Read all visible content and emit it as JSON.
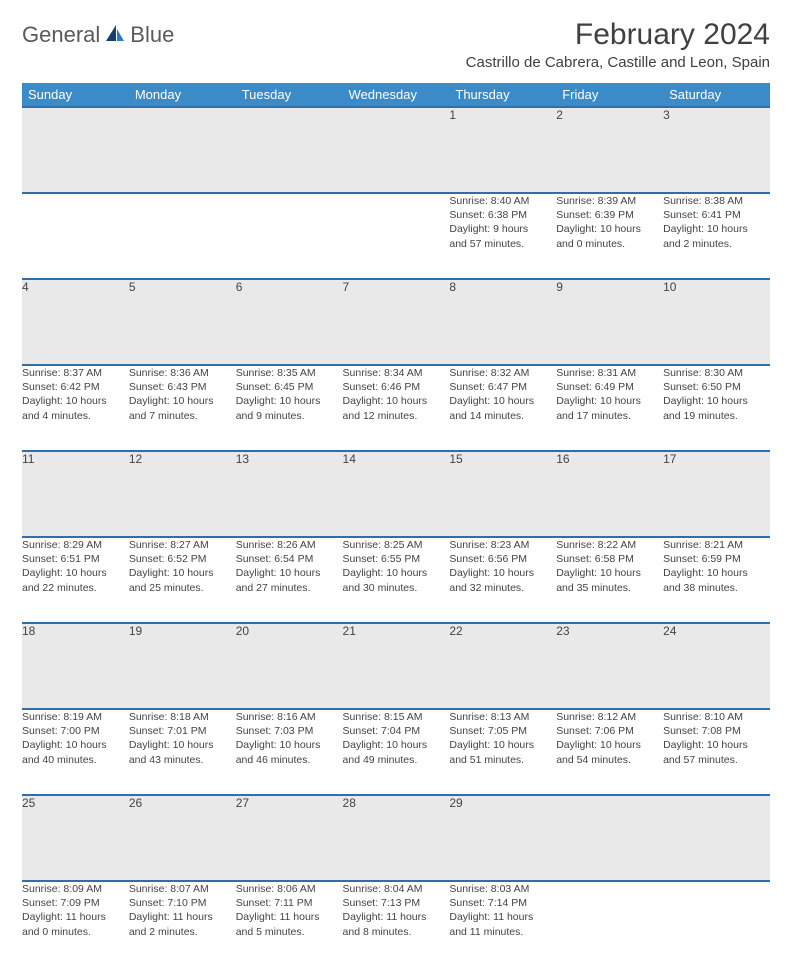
{
  "logo": {
    "general": "General",
    "blue": "Blue"
  },
  "header": {
    "month_title": "February 2024",
    "location": "Castrillo de Cabrera, Castille and Leon, Spain"
  },
  "colors": {
    "header_bg": "#3b8bc9",
    "row_border": "#2f6ea8",
    "daynum_bg": "#e9e9e9",
    "logo_blue": "#2b7bbf"
  },
  "weekdays": [
    "Sunday",
    "Monday",
    "Tuesday",
    "Wednesday",
    "Thursday",
    "Friday",
    "Saturday"
  ],
  "weeks": [
    [
      null,
      null,
      null,
      null,
      {
        "n": "1",
        "sr": "Sunrise: 8:40 AM",
        "ss": "Sunset: 6:38 PM",
        "d1": "Daylight: 9 hours",
        "d2": "and 57 minutes."
      },
      {
        "n": "2",
        "sr": "Sunrise: 8:39 AM",
        "ss": "Sunset: 6:39 PM",
        "d1": "Daylight: 10 hours",
        "d2": "and 0 minutes."
      },
      {
        "n": "3",
        "sr": "Sunrise: 8:38 AM",
        "ss": "Sunset: 6:41 PM",
        "d1": "Daylight: 10 hours",
        "d2": "and 2 minutes."
      }
    ],
    [
      {
        "n": "4",
        "sr": "Sunrise: 8:37 AM",
        "ss": "Sunset: 6:42 PM",
        "d1": "Daylight: 10 hours",
        "d2": "and 4 minutes."
      },
      {
        "n": "5",
        "sr": "Sunrise: 8:36 AM",
        "ss": "Sunset: 6:43 PM",
        "d1": "Daylight: 10 hours",
        "d2": "and 7 minutes."
      },
      {
        "n": "6",
        "sr": "Sunrise: 8:35 AM",
        "ss": "Sunset: 6:45 PM",
        "d1": "Daylight: 10 hours",
        "d2": "and 9 minutes."
      },
      {
        "n": "7",
        "sr": "Sunrise: 8:34 AM",
        "ss": "Sunset: 6:46 PM",
        "d1": "Daylight: 10 hours",
        "d2": "and 12 minutes."
      },
      {
        "n": "8",
        "sr": "Sunrise: 8:32 AM",
        "ss": "Sunset: 6:47 PM",
        "d1": "Daylight: 10 hours",
        "d2": "and 14 minutes."
      },
      {
        "n": "9",
        "sr": "Sunrise: 8:31 AM",
        "ss": "Sunset: 6:49 PM",
        "d1": "Daylight: 10 hours",
        "d2": "and 17 minutes."
      },
      {
        "n": "10",
        "sr": "Sunrise: 8:30 AM",
        "ss": "Sunset: 6:50 PM",
        "d1": "Daylight: 10 hours",
        "d2": "and 19 minutes."
      }
    ],
    [
      {
        "n": "11",
        "sr": "Sunrise: 8:29 AM",
        "ss": "Sunset: 6:51 PM",
        "d1": "Daylight: 10 hours",
        "d2": "and 22 minutes."
      },
      {
        "n": "12",
        "sr": "Sunrise: 8:27 AM",
        "ss": "Sunset: 6:52 PM",
        "d1": "Daylight: 10 hours",
        "d2": "and 25 minutes."
      },
      {
        "n": "13",
        "sr": "Sunrise: 8:26 AM",
        "ss": "Sunset: 6:54 PM",
        "d1": "Daylight: 10 hours",
        "d2": "and 27 minutes."
      },
      {
        "n": "14",
        "sr": "Sunrise: 8:25 AM",
        "ss": "Sunset: 6:55 PM",
        "d1": "Daylight: 10 hours",
        "d2": "and 30 minutes."
      },
      {
        "n": "15",
        "sr": "Sunrise: 8:23 AM",
        "ss": "Sunset: 6:56 PM",
        "d1": "Daylight: 10 hours",
        "d2": "and 32 minutes."
      },
      {
        "n": "16",
        "sr": "Sunrise: 8:22 AM",
        "ss": "Sunset: 6:58 PM",
        "d1": "Daylight: 10 hours",
        "d2": "and 35 minutes."
      },
      {
        "n": "17",
        "sr": "Sunrise: 8:21 AM",
        "ss": "Sunset: 6:59 PM",
        "d1": "Daylight: 10 hours",
        "d2": "and 38 minutes."
      }
    ],
    [
      {
        "n": "18",
        "sr": "Sunrise: 8:19 AM",
        "ss": "Sunset: 7:00 PM",
        "d1": "Daylight: 10 hours",
        "d2": "and 40 minutes."
      },
      {
        "n": "19",
        "sr": "Sunrise: 8:18 AM",
        "ss": "Sunset: 7:01 PM",
        "d1": "Daylight: 10 hours",
        "d2": "and 43 minutes."
      },
      {
        "n": "20",
        "sr": "Sunrise: 8:16 AM",
        "ss": "Sunset: 7:03 PM",
        "d1": "Daylight: 10 hours",
        "d2": "and 46 minutes."
      },
      {
        "n": "21",
        "sr": "Sunrise: 8:15 AM",
        "ss": "Sunset: 7:04 PM",
        "d1": "Daylight: 10 hours",
        "d2": "and 49 minutes."
      },
      {
        "n": "22",
        "sr": "Sunrise: 8:13 AM",
        "ss": "Sunset: 7:05 PM",
        "d1": "Daylight: 10 hours",
        "d2": "and 51 minutes."
      },
      {
        "n": "23",
        "sr": "Sunrise: 8:12 AM",
        "ss": "Sunset: 7:06 PM",
        "d1": "Daylight: 10 hours",
        "d2": "and 54 minutes."
      },
      {
        "n": "24",
        "sr": "Sunrise: 8:10 AM",
        "ss": "Sunset: 7:08 PM",
        "d1": "Daylight: 10 hours",
        "d2": "and 57 minutes."
      }
    ],
    [
      {
        "n": "25",
        "sr": "Sunrise: 8:09 AM",
        "ss": "Sunset: 7:09 PM",
        "d1": "Daylight: 11 hours",
        "d2": "and 0 minutes."
      },
      {
        "n": "26",
        "sr": "Sunrise: 8:07 AM",
        "ss": "Sunset: 7:10 PM",
        "d1": "Daylight: 11 hours",
        "d2": "and 2 minutes."
      },
      {
        "n": "27",
        "sr": "Sunrise: 8:06 AM",
        "ss": "Sunset: 7:11 PM",
        "d1": "Daylight: 11 hours",
        "d2": "and 5 minutes."
      },
      {
        "n": "28",
        "sr": "Sunrise: 8:04 AM",
        "ss": "Sunset: 7:13 PM",
        "d1": "Daylight: 11 hours",
        "d2": "and 8 minutes."
      },
      {
        "n": "29",
        "sr": "Sunrise: 8:03 AM",
        "ss": "Sunset: 7:14 PM",
        "d1": "Daylight: 11 hours",
        "d2": "and 11 minutes."
      },
      null,
      null
    ]
  ]
}
